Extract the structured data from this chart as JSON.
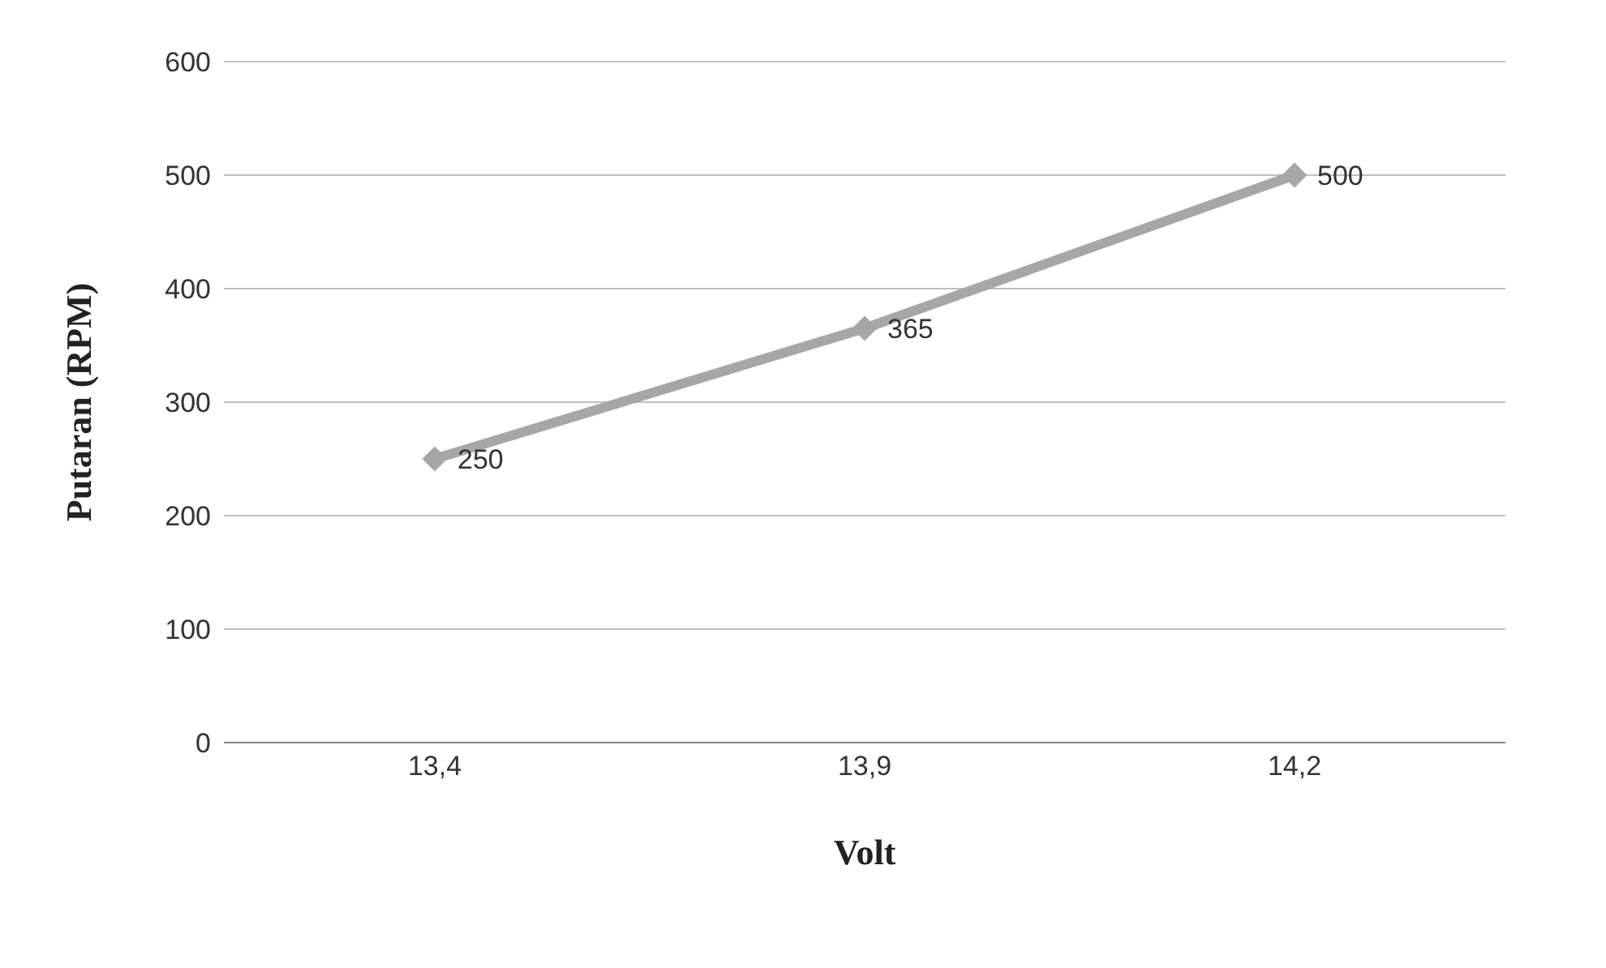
{
  "chart_data": {
    "type": "line",
    "xlabel": "Volt",
    "ylabel": "Putaran (RPM)",
    "categories": [
      "13,4",
      "13,9",
      "14,2"
    ],
    "series": [
      {
        "color": "#a6a6a6",
        "values": [
          250,
          365,
          500
        ]
      }
    ],
    "ylim": [
      0,
      600
    ],
    "yticks": [
      0,
      100,
      200,
      300,
      400,
      500,
      600
    ],
    "grid": "y",
    "marker": "diamond",
    "line_style": "solid",
    "data_labels": true
  }
}
